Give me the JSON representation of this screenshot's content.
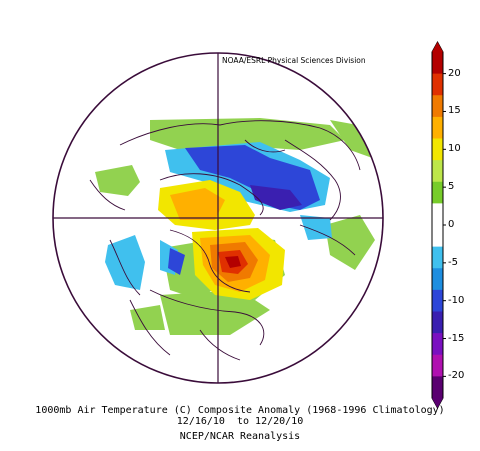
{
  "credit": "NOAA/ESRL Physical Sciences Division",
  "caption": {
    "line1": "1000mb Air Temperature (C) Composite Anomaly (1968-1996 Climatology)",
    "line2": "12/16/10  to 12/20/10",
    "line3": "NCEP/NCAR Reanalysis"
  },
  "colorbar": {
    "ticks": [
      "20",
      "15",
      "10",
      "5",
      "0",
      "-5",
      "-10",
      "-15",
      "-20"
    ],
    "colors": [
      "#b30000",
      "#e03000",
      "#f07a00",
      "#ffb000",
      "#f2e600",
      "#bde64a",
      "#77cc2a",
      "#ffffff",
      "#ffffff",
      "#40c0ee",
      "#1e8ee0",
      "#2d46d8",
      "#3a1fb0",
      "#7a10c0",
      "#b010b0",
      "#5a0070"
    ]
  },
  "colors": {
    "coastline": "#3a0c3a",
    "background": "#ffffff"
  }
}
